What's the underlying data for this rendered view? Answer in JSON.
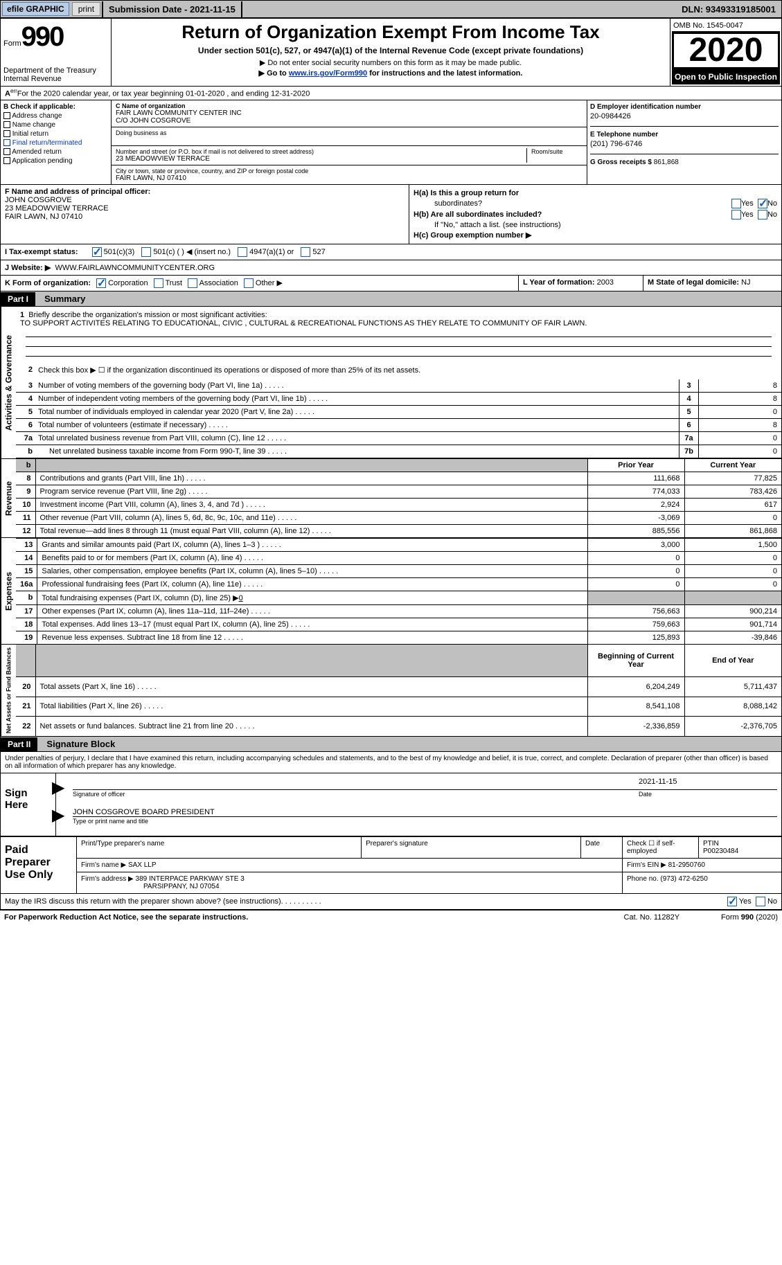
{
  "topbar": {
    "efile": "efile GRAPHIC",
    "print": "print",
    "submission": "Submission Date - 2021-11-15",
    "dln": "DLN: 93493319185001"
  },
  "header": {
    "form_label": "Form",
    "form_num": "990",
    "dept": "Department of the Treasury\nInternal Revenue",
    "title": "Return of Organization Exempt From Income Tax",
    "subtitle": "Under section 501(c), 527, or 4947(a)(1) of the Internal Revenue Code (except private foundations)",
    "line1": "▶ Do not enter social security numbers on this form as it may be made public.",
    "line2_pre": "▶ Go to ",
    "line2_link": "www.irs.gov/Form990",
    "line2_post": " for instructions and the latest information.",
    "omb": "OMB No. 1545-0047",
    "year": "2020",
    "inspection": "Open to Public Inspection"
  },
  "line_a": "For the 2020 calendar year, or tax year beginning 01-01-2020   , and ending 12-31-2020",
  "col_b": {
    "title": "B Check if applicable:",
    "items": [
      "Address change",
      "Name change",
      "Initial return",
      "Final return/terminated",
      "Amended return",
      "Application pending"
    ],
    "app": "Application"
  },
  "col_c": {
    "name_label": "C Name of organization",
    "name": "FAIR LAWN COMMUNITY CENTER INC",
    "care_of": "C/O JOHN COSGROVE",
    "dba_label": "Doing business as",
    "dba": "",
    "street_label": "Number and street (or P.O. box if mail is not delivered to street address)",
    "street": "23 MEADOWVIEW TERRACE",
    "suite_label": "Room/suite",
    "city_label": "City or town, state or province, country, and ZIP or foreign postal code",
    "city": "FAIR LAWN, NJ  07410"
  },
  "col_d": {
    "d_label": "D Employer identification number",
    "d_val": "20-0984426",
    "e_label": "E Telephone number",
    "e_val": "(201) 796-6746",
    "g_label": "G Gross receipts $",
    "g_val": "861,868"
  },
  "section_f": {
    "f_label": "F Name and address of principal officer:",
    "f_name": "JOHN COSGROVE",
    "f_street": "23 MEADOWVIEW TERRACE",
    "f_city": "FAIR LAWN, NJ  07410"
  },
  "section_h": {
    "ha_label": "H(a)  Is this a group return for",
    "ha_sub": "subordinates?",
    "hb_label": "H(b)  Are all subordinates included?",
    "hb_note": "If \"No,\" attach a list. (see instructions)",
    "hc_label": "H(c)  Group exemption number ▶",
    "yes": "Yes",
    "no": "No"
  },
  "line_i": {
    "label": "I    Tax-exempt status:",
    "opt1": "501(c)(3)",
    "opt2": "501(c) (  ) ◀ (insert no.)",
    "opt3": "4947(a)(1) or",
    "opt4": "527"
  },
  "line_j": {
    "label": "J   Website: ▶",
    "val": "WWW.FAIRLAWNCOMMUNITYCENTER.ORG"
  },
  "line_k": {
    "label": "K Form of organization:",
    "corp": "Corporation",
    "trust": "Trust",
    "assoc": "Association",
    "other": "Other ▶",
    "l_label": "L Year of formation:",
    "l_val": "2003",
    "m_label": "M State of legal domicile:",
    "m_val": "NJ"
  },
  "part1": {
    "hdr": "Part I",
    "title": "Summary",
    "briefly_label": "Briefly describe the organization's mission or most significant activities:",
    "mission": "TO SUPPORT ACTIVITES RELATING TO EDUCATIONAL, CIVIC , CULTURAL & RECREATIONAL FUNCTIONS AS THEY RELATE TO COMMUNITY OF FAIR LAWN.",
    "line2": "Check this box ▶ ☐  if the organization discontinued its operations or disposed of more than 25% of its net assets.",
    "gov_label": "Activities & Governance",
    "rows_gov": [
      {
        "n": "3",
        "d": "Number of voting members of the governing body (Part VI, line 1a)",
        "box": "3",
        "v": "8"
      },
      {
        "n": "4",
        "d": "Number of independent voting members of the governing body (Part VI, line 1b)",
        "box": "4",
        "v": "8"
      },
      {
        "n": "5",
        "d": "Total number of individuals employed in calendar year 2020 (Part V, line 2a)",
        "box": "5",
        "v": "0"
      },
      {
        "n": "6",
        "d": "Total number of volunteers (estimate if necessary)",
        "box": "6",
        "v": "8"
      },
      {
        "n": "7a",
        "d": "Total unrelated business revenue from Part VIII, column (C), line 12",
        "box": "7a",
        "v": "0"
      },
      {
        "n": "b",
        "d": "Net unrelated business taxable income from Form 990-T, line 39",
        "box": "7b",
        "v": "0",
        "indent": true
      }
    ],
    "prior": "Prior Year",
    "current": "Current Year",
    "rev_label": "Revenue",
    "rows_rev": [
      {
        "n": "8",
        "d": "Contributions and grants (Part VIII, line 1h)",
        "p": "111,668",
        "c": "77,825"
      },
      {
        "n": "9",
        "d": "Program service revenue (Part VIII, line 2g)",
        "p": "774,033",
        "c": "783,426"
      },
      {
        "n": "10",
        "d": "Investment income (Part VIII, column (A), lines 3, 4, and 7d )",
        "p": "2,924",
        "c": "617"
      },
      {
        "n": "11",
        "d": "Other revenue (Part VIII, column (A), lines 5, 6d, 8c, 9c, 10c, and 11e)",
        "p": "-3,069",
        "c": "0"
      },
      {
        "n": "12",
        "d": "Total revenue—add lines 8 through 11 (must equal Part VIII, column (A), line 12)",
        "p": "885,556",
        "c": "861,868"
      }
    ],
    "exp_label": "Expenses",
    "rows_exp": [
      {
        "n": "13",
        "d": "Grants and similar amounts paid (Part IX, column (A), lines 1–3 )",
        "p": "3,000",
        "c": "1,500"
      },
      {
        "n": "14",
        "d": "Benefits paid to or for members (Part IX, column (A), line 4)",
        "p": "0",
        "c": "0"
      },
      {
        "n": "15",
        "d": "Salaries, other compensation, employee benefits (Part IX, column (A), lines 5–10)",
        "p": "0",
        "c": "0"
      },
      {
        "n": "16a",
        "d": "Professional fundraising fees (Part IX, column (A), line 11e)",
        "p": "0",
        "c": "0"
      }
    ],
    "line_b": "Total fundraising expenses (Part IX, column (D), line 25) ▶",
    "line_b_val": "0",
    "rows_exp2": [
      {
        "n": "17",
        "d": "Other expenses (Part IX, column (A), lines 11a–11d, 11f–24e)",
        "p": "756,663",
        "c": "900,214"
      },
      {
        "n": "18",
        "d": "Total expenses. Add lines 13–17 (must equal Part IX, column (A), line 25)",
        "p": "759,663",
        "c": "901,714"
      },
      {
        "n": "19",
        "d": "Revenue less expenses. Subtract line 18 from line 12",
        "p": "125,893",
        "c": "-39,846"
      }
    ],
    "net_label": "Net Assets or Fund Balances",
    "begin": "Beginning of Current Year",
    "end": "End of Year",
    "rows_net": [
      {
        "n": "20",
        "d": "Total assets (Part X, line 16)",
        "p": "6,204,249",
        "c": "5,711,437"
      },
      {
        "n": "21",
        "d": "Total liabilities (Part X, line 26)",
        "p": "8,541,108",
        "c": "8,088,142"
      },
      {
        "n": "22",
        "d": "Net assets or fund balances. Subtract line 21 from line 20",
        "p": "-2,336,859",
        "c": "-2,376,705"
      }
    ]
  },
  "part2": {
    "hdr": "Part II",
    "title": "Signature Block",
    "penalty": "Under penalties of perjury, I declare that I have examined this return, including accompanying schedules and statements, and to the best of my knowledge and belief, it is true, correct, and complete. Declaration of preparer (other than officer) is based on all information of which preparer has any knowledge.",
    "sign_here": "Sign Here",
    "sig_officer": "Signature of officer",
    "sig_date_val": "2021-11-15",
    "sig_date": "Date",
    "officer_name": "JOHN COSGROVE  BOARD PRESIDENT",
    "type_name": "Type or print name and title",
    "paid_prep": "Paid Preparer Use Only",
    "prep_name_label": "Print/Type preparer's name",
    "prep_sig_label": "Preparer's signature",
    "prep_date_label": "Date",
    "check_self": "Check ☐ if self-employed",
    "ptin_label": "PTIN",
    "ptin": "P00230484",
    "firm_name_label": "Firm's name   ▶",
    "firm_name": "SAX LLP",
    "firm_ein_label": "Firm's EIN ▶",
    "firm_ein": "81-2950760",
    "firm_addr_label": "Firm's address ▶",
    "firm_addr1": "389 INTERPACE PARKWAY STE 3",
    "firm_addr2": "PARSIPPANY, NJ  07054",
    "phone_label": "Phone no.",
    "phone": "(973) 472-6250",
    "may_irs": "May the IRS discuss this return with the preparer shown above? (see instructions)"
  },
  "footer": {
    "paperwork": "For Paperwork Reduction Act Notice, see the separate instructions.",
    "cat": "Cat. No. 11282Y",
    "form": "Form 990 (2020)"
  }
}
